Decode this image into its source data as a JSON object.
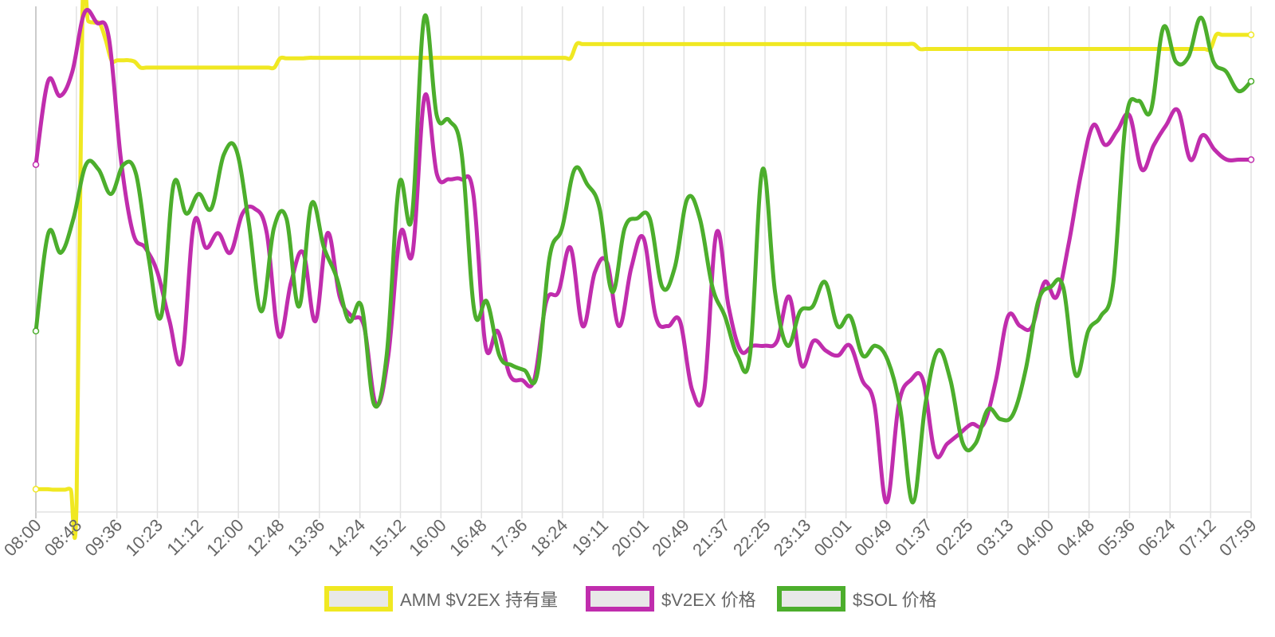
{
  "chart_data": {
    "type": "line",
    "title": "",
    "xlabel": "",
    "ylabel": "",
    "grid": "vertical",
    "legend_position": "bottom-center",
    "x_tick_labels": [
      "08:00",
      "08:48",
      "09:36",
      "10:23",
      "11:12",
      "12:00",
      "12:48",
      "13:36",
      "14:24",
      "15:12",
      "16:00",
      "16:48",
      "17:36",
      "18:24",
      "19:11",
      "20:01",
      "20:49",
      "21:37",
      "22:25",
      "23:13",
      "00:01",
      "00:49",
      "01:37",
      "02:25",
      "03:13",
      "04:00",
      "04:48",
      "05:36",
      "06:24",
      "07:12",
      "07:59"
    ],
    "x_points_per_tick": 4,
    "series": [
      {
        "name": "AMM $V2EX 持有量",
        "color": "#f0e822",
        "values": [
          2.7,
          2.7,
          2.7,
          2.6,
          2.6,
          2.6,
          2.6,
          0,
          100,
          98.3,
          98,
          97.8,
          94.5,
          90.3,
          90.3,
          90.3,
          90.3,
          90,
          88.8,
          88.8,
          88.8,
          88.8,
          88.8,
          88.8,
          88.8,
          88.8,
          88.8,
          88.8,
          88.8,
          88.8,
          88.8,
          88.8,
          88.8,
          88.8,
          88.8,
          88.8,
          88.8,
          88.8,
          88.8,
          88.8,
          88.8,
          88.8,
          90.7,
          90.7,
          90.7,
          90.7,
          90.7,
          90.8,
          90.8,
          90.8,
          90.8,
          90.8,
          90.8,
          90.8,
          90.8,
          90.8,
          90.8,
          90.8,
          90.8,
          90.8,
          90.8,
          90.8,
          90.8,
          90.8,
          90.8,
          90.8,
          90.8,
          90.8,
          90.8,
          90.8,
          90.8,
          90.8,
          90.8,
          90.8,
          90.8,
          90.8,
          90.8,
          90.8,
          90.8,
          90.8,
          90.8,
          90.8,
          90.8,
          90.8,
          90.8,
          90.8,
          90.8,
          90.8,
          90.8,
          90.8,
          90.8,
          90.8,
          90.8,
          93.6,
          93.6,
          93.6,
          93.6,
          93.6,
          93.6,
          93.6,
          93.6,
          93.6,
          93.6,
          93.6,
          93.6,
          93.6,
          93.6,
          93.6,
          93.6,
          93.6,
          93.6,
          93.6,
          93.6,
          93.6,
          93.6,
          93.6,
          93.6,
          93.6,
          93.6,
          93.6,
          93.6,
          93.6,
          93.6,
          93.6,
          93.6,
          93.6,
          93.6,
          93.6,
          93.6,
          93.6,
          93.6,
          93.6,
          93.6,
          93.6,
          93.6,
          93.6,
          93.6,
          93.6,
          93.6,
          93.6,
          93.6,
          93.6,
          93.6,
          93.6,
          93.6,
          93.6,
          93.6,
          93.6,
          93.6,
          93.6,
          93.6,
          93.6,
          92.6,
          92.6,
          92.6,
          92.6,
          92.6,
          92.6,
          92.6,
          92.6,
          92.6,
          92.6,
          92.6,
          92.6,
          92.6,
          92.6,
          92.6,
          92.6,
          92.6,
          92.6,
          92.6,
          92.6,
          92.6,
          92.6,
          92.6,
          92.6,
          92.6,
          92.6,
          92.6,
          92.6,
          92.6,
          92.6,
          92.6,
          92.6,
          92.6,
          92.6,
          92.6,
          92.6,
          92.6,
          92.6,
          92.6,
          92.6,
          92.6,
          92.6,
          92.6,
          92.6,
          92.6,
          92.6,
          92.6,
          92.6,
          92.6,
          92.6,
          92.6,
          95.5,
          95.5,
          95.5,
          95.5,
          95.5,
          95.5,
          95.5
        ]
      },
      {
        "name": "$V2EX 价格",
        "color": "#c02dad",
        "values": [
          69,
          86,
          83,
          88,
          100,
          98,
          95,
          70,
          55,
          52,
          47,
          37,
          29,
          57,
          52,
          55,
          51,
          59,
          60,
          55,
          34,
          45,
          51,
          37,
          55,
          42,
          38,
          36,
          20,
          30,
          55,
          51,
          83,
          67,
          66,
          66,
          63,
          32,
          35,
          26,
          25,
          25,
          41,
          43,
          52,
          36,
          47,
          49,
          36,
          48,
          54,
          38,
          36,
          37,
          23,
          23,
          55,
          40,
          31,
          32,
          32,
          33,
          42,
          28,
          33,
          31,
          30,
          32,
          25,
          20,
          0,
          20,
          25,
          25,
          10,
          12,
          14,
          16,
          16,
          25,
          38,
          36,
          36,
          45,
          42,
          53,
          67,
          77,
          73,
          76,
          79,
          68,
          73,
          77,
          80,
          70,
          75,
          72,
          70,
          70,
          70
        ],
        "note_values_are_plotted_relative": ""
      },
      {
        "name": "$SOL 价格",
        "color": "#4cae2c",
        "values": [
          35,
          55,
          51,
          58,
          69,
          68,
          63,
          69,
          67,
          50,
          38,
          65,
          59,
          63,
          60,
          71,
          72,
          57,
          39,
          56,
          58,
          40,
          61,
          52,
          46,
          37,
          40,
          20,
          30,
          65,
          58,
          99,
          79,
          78,
          71,
          39,
          41,
          30,
          28,
          27,
          26,
          50,
          56,
          68,
          65,
          60,
          43,
          56,
          58,
          58,
          44,
          48,
          62,
          58,
          44,
          38,
          30,
          30,
          68,
          43,
          32,
          39,
          40,
          45,
          36,
          38,
          30,
          32,
          29,
          19,
          0,
          20,
          31,
          25,
          12,
          12,
          19,
          17,
          18,
          27,
          41,
          44,
          44,
          26,
          35,
          38,
          45,
          78,
          82,
          80,
          97,
          90,
          91,
          99,
          90,
          88,
          84,
          86
        ],
        "note_values_are_plotted_relative": ""
      }
    ]
  },
  "legend": {
    "items": [
      {
        "label": "AMM $V2EX 持有量",
        "color": "#f0e822"
      },
      {
        "label": "$V2EX 价格",
        "color": "#c02dad"
      },
      {
        "label": "$SOL 价格",
        "color": "#4cae2c"
      }
    ]
  }
}
